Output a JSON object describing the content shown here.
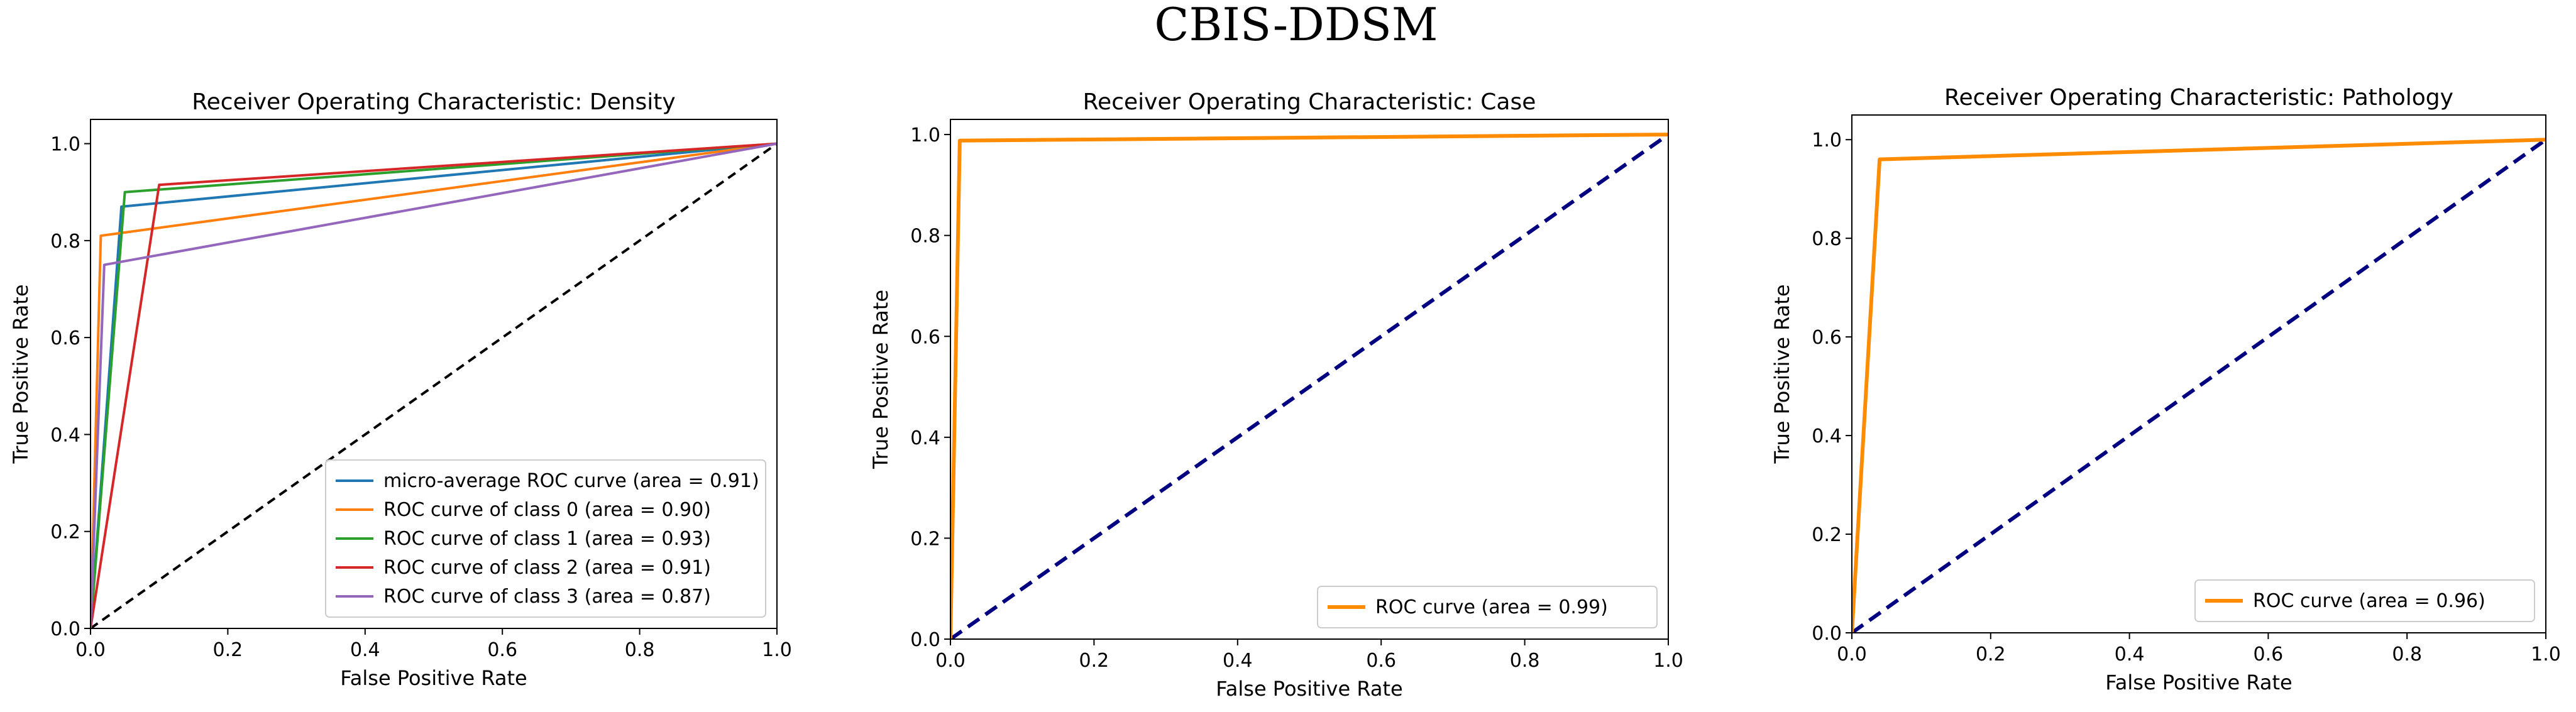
{
  "figure_title": "CBIS-DDSM",
  "chart_data": [
    {
      "type": "line",
      "title": "Receiver Operating Characteristic: Density",
      "xlabel": "False Positive Rate",
      "ylabel": "True Positive Rate",
      "xlim": [
        0,
        1
      ],
      "ylim": [
        0,
        1.05
      ],
      "xticks": [
        "0.0",
        "0.2",
        "0.4",
        "0.6",
        "0.8",
        "1.0"
      ],
      "yticks": [
        "0.0",
        "0.2",
        "0.4",
        "0.6",
        "0.8",
        "1.0"
      ],
      "legend_position": "lower-right",
      "series": [
        {
          "name": "micro-average ROC curve (area = 0.91)",
          "color": "#1f77b4",
          "dash": "solid",
          "x": [
            0,
            0.045,
            1
          ],
          "y": [
            0,
            0.87,
            1
          ]
        },
        {
          "name": "ROC curve of class 0 (area = 0.90)",
          "color": "#ff7f0e",
          "dash": "solid",
          "x": [
            0,
            0.015,
            1
          ],
          "y": [
            0,
            0.81,
            1
          ]
        },
        {
          "name": "ROC curve of class 1 (area = 0.93)",
          "color": "#2ca02c",
          "dash": "solid",
          "x": [
            0,
            0.05,
            1
          ],
          "y": [
            0,
            0.9,
            1
          ]
        },
        {
          "name": "ROC curve of class 2 (area = 0.91)",
          "color": "#d62728",
          "dash": "solid",
          "x": [
            0,
            0.1,
            1
          ],
          "y": [
            0,
            0.915,
            1
          ]
        },
        {
          "name": "ROC curve of class 3 (area = 0.87)",
          "color": "#9467bd",
          "dash": "solid",
          "x": [
            0,
            0.02,
            1
          ],
          "y": [
            0,
            0.75,
            1
          ]
        },
        {
          "name": "",
          "color": "#000000",
          "dash": "dashed",
          "x": [
            0,
            1
          ],
          "y": [
            0,
            1
          ]
        }
      ]
    },
    {
      "type": "line",
      "title": "Receiver Operating Characteristic: Case",
      "xlabel": "False Positive Rate",
      "ylabel": "True Positive Rate",
      "xlim": [
        0,
        1
      ],
      "ylim": [
        0,
        1.03
      ],
      "xticks": [
        "0.0",
        "0.2",
        "0.4",
        "0.6",
        "0.8",
        "1.0"
      ],
      "yticks": [
        "0.0",
        "0.2",
        "0.4",
        "0.6",
        "0.8",
        "1.0"
      ],
      "legend_position": "lower-right",
      "series": [
        {
          "name": "ROC curve (area = 0.99)",
          "color": "#ff8c00",
          "dash": "solid",
          "x": [
            0,
            0.013,
            1
          ],
          "y": [
            0,
            0.988,
            1
          ]
        },
        {
          "name": "",
          "color": "#000080",
          "dash": "dashed",
          "x": [
            0,
            1
          ],
          "y": [
            0,
            1
          ]
        }
      ]
    },
    {
      "type": "line",
      "title": "Receiver Operating Characteristic: Pathology",
      "xlabel": "False Positive Rate",
      "ylabel": "True Positive Rate",
      "xlim": [
        0,
        1
      ],
      "ylim": [
        0,
        1.05
      ],
      "xticks": [
        "0.0",
        "0.2",
        "0.4",
        "0.6",
        "0.8",
        "1.0"
      ],
      "yticks": [
        "0.0",
        "0.2",
        "0.4",
        "0.6",
        "0.8",
        "1.0"
      ],
      "legend_position": "lower-right",
      "series": [
        {
          "name": "ROC curve (area = 0.96)",
          "color": "#ff8c00",
          "dash": "solid",
          "x": [
            0,
            0.04,
            1
          ],
          "y": [
            0,
            0.96,
            1
          ]
        },
        {
          "name": "",
          "color": "#000080",
          "dash": "dashed",
          "x": [
            0,
            1
          ],
          "y": [
            0,
            1
          ]
        }
      ]
    }
  ]
}
